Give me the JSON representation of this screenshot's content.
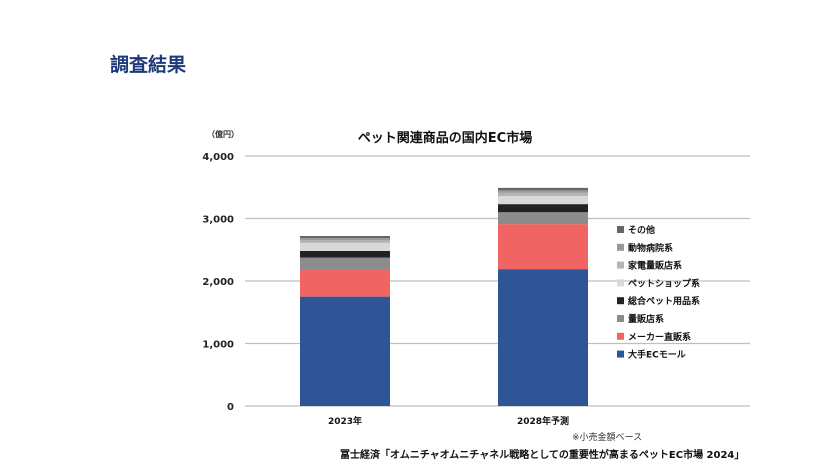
{
  "page": {
    "heading": "調査結果"
  },
  "chart_data": {
    "type": "bar",
    "stacked": true,
    "title": "ペット関連商品の国内EC市場",
    "ylabel": "（億円）",
    "ylim": [
      0,
      4000
    ],
    "yticks": [
      0,
      1000,
      2000,
      3000,
      4000
    ],
    "ytick_labels": [
      "0",
      "1,000",
      "2,000",
      "3,000",
      "4,000"
    ],
    "grid": true,
    "legend_position": "right",
    "categories": [
      "2023年",
      "2028年予測"
    ],
    "series": [
      {
        "name": "大手ECモール",
        "color": "#2f5597",
        "values": [
          1750,
          2190
        ]
      },
      {
        "name": "メーカー直販系",
        "color": "#f06464",
        "values": [
          425,
          720
        ]
      },
      {
        "name": "量販店系",
        "color": "#8c8c8c",
        "values": [
          200,
          190
        ]
      },
      {
        "name": "総合ペット用品系",
        "color": "#222222",
        "values": [
          105,
          130
        ]
      },
      {
        "name": "ペットショップ系",
        "color": "#d9d9d9",
        "values": [
          130,
          130
        ]
      },
      {
        "name": "家電量販店系",
        "color": "#b4b4b4",
        "values": [
          40,
          50
        ]
      },
      {
        "name": "動物病院系",
        "color": "#999999",
        "values": [
          35,
          40
        ]
      },
      {
        "name": "その他",
        "color": "#666666",
        "values": [
          35,
          40
        ]
      }
    ],
    "footnote": "※小売金額ベース"
  },
  "source": "冨士経済「オムニチャオムニチャネル戦略としての重要性が高まるペットEC市場 2024」"
}
